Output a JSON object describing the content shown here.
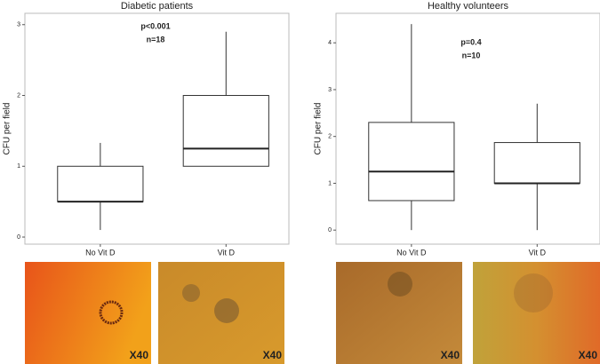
{
  "chart_data": [
    {
      "type": "box",
      "title": "Diabetic patients",
      "ylabel": "CFU per field",
      "categories": [
        "No Vit D",
        "Vit D"
      ],
      "annotations": [
        "p<0.001",
        "n=18"
      ],
      "boxes": [
        {
          "whislo": 0.1,
          "q1": 0.5,
          "med": 0.5,
          "q3": 1.0,
          "whishi": 1.33
        },
        {
          "whislo": 1.0,
          "q1": 1.0,
          "med": 1.25,
          "q3": 2.0,
          "whishi": 2.9
        }
      ],
      "ylim": [
        -0.1,
        3.16
      ],
      "yticks": [
        0,
        1,
        2,
        3
      ]
    },
    {
      "type": "box",
      "title": "Healthy volunteers",
      "ylabel": "CFU per field",
      "categories": [
        "No Vit D",
        "Vit D"
      ],
      "annotations": [
        "p=0.4",
        "n=10"
      ],
      "boxes": [
        {
          "whislo": 0,
          "q1": 0.63,
          "med": 1.25,
          "q3": 2.3,
          "whishi": 4.4
        },
        {
          "whislo": 0,
          "q1": 1.0,
          "med": 1.0,
          "q3": 1.87,
          "whishi": 2.7
        }
      ],
      "ylim": [
        -0.3,
        4.63
      ],
      "yticks": [
        0,
        1,
        2,
        3,
        4
      ]
    }
  ],
  "images": [
    {
      "label": "X40"
    },
    {
      "label": "X40"
    },
    {
      "label": "X40"
    },
    {
      "label": "X40"
    }
  ]
}
